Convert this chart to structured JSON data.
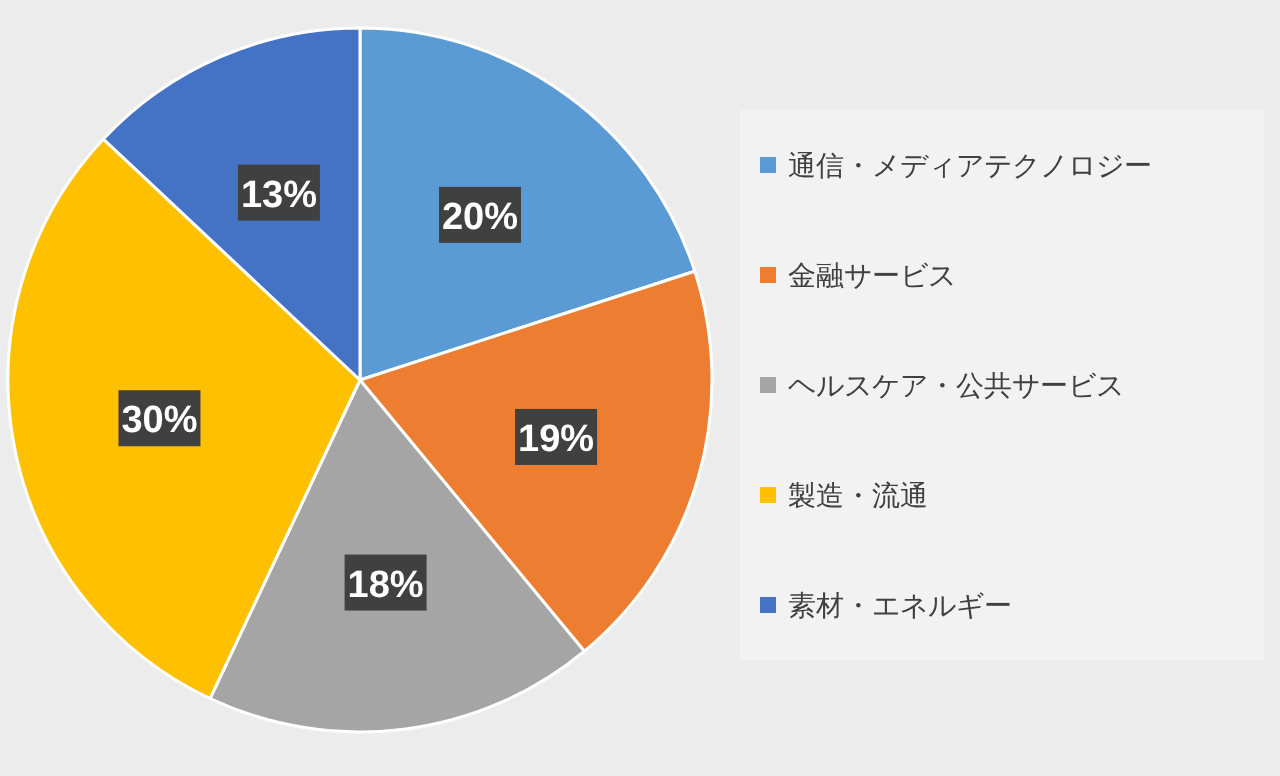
{
  "chart_data": {
    "type": "pie",
    "categories": [
      "通信・メディアテクノロジー",
      "金融サービス",
      "ヘルスケア・公共サービス",
      "製造・流通",
      "素材・エネルギー"
    ],
    "values": [
      20,
      19,
      18,
      30,
      13
    ],
    "value_labels": [
      "20%",
      "19%",
      "18%",
      "30%",
      "13%"
    ],
    "colors": [
      "#5b9bd5",
      "#ed7d31",
      "#a5a5a5",
      "#ffc000",
      "#4472c4"
    ],
    "legend": "right"
  }
}
